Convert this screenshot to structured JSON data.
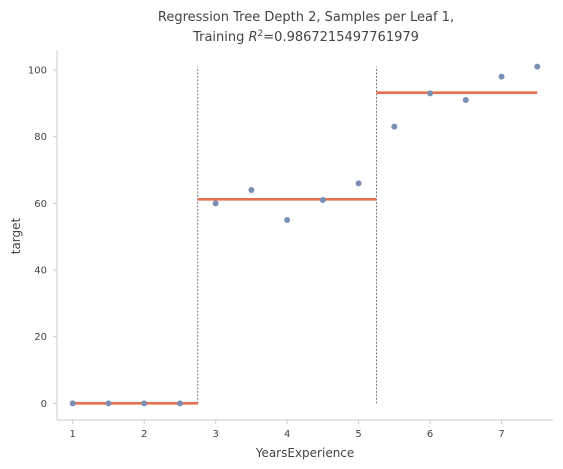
{
  "chart_data": {
    "type": "scatter",
    "title_line1": "Regression Tree Depth 2, Samples per Leaf 1,",
    "title_line2_prefix": "Training ",
    "title_line2_r": "R",
    "title_line2_sup": "2",
    "title_line2_value": "=0.9867215497761979",
    "xlabel": "YearsExperience",
    "ylabel": "target",
    "xlim": [
      0.78,
      7.72
    ],
    "ylim": [
      -5.0,
      106.0
    ],
    "xticks": [
      1,
      2,
      3,
      4,
      5,
      6,
      7
    ],
    "yticks": [
      0,
      20,
      40,
      60,
      80,
      100
    ],
    "grid": false,
    "colors": {
      "points": "#7b8fb4",
      "fit": "#e8704d",
      "splits": "#444444",
      "axes": "#cccccc"
    },
    "points": {
      "x": [
        1.0,
        1.5,
        2.0,
        2.5,
        3.0,
        3.5,
        4.0,
        4.5,
        5.0,
        5.5,
        6.0,
        6.5,
        7.0,
        7.5
      ],
      "y": [
        0,
        0,
        0,
        0,
        60,
        64,
        55,
        61,
        66,
        83,
        93,
        91,
        98,
        101
      ]
    },
    "fit_segments": [
      {
        "x_start": 1.0,
        "x_end": 2.75,
        "y": 0
      },
      {
        "x_start": 2.75,
        "x_end": 5.25,
        "y": 61.2
      },
      {
        "x_start": 5.25,
        "x_end": 7.5,
        "y": 93.2
      }
    ],
    "split_lines": [
      {
        "x": 2.75,
        "y_start": 0,
        "y_end": 101
      },
      {
        "x": 5.25,
        "y_start": 0,
        "y_end": 101
      }
    ]
  }
}
